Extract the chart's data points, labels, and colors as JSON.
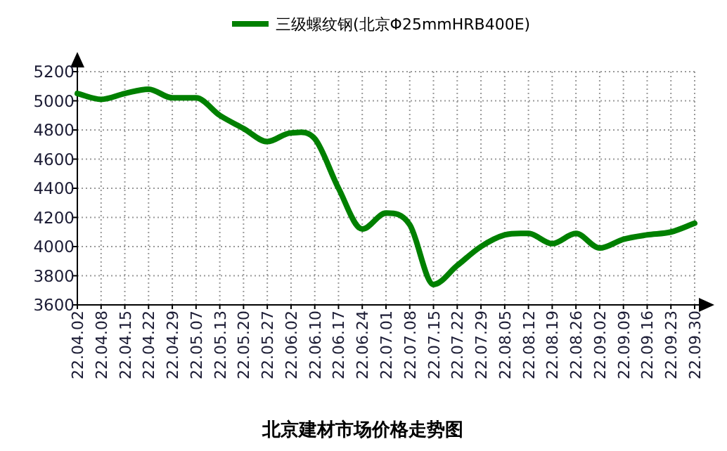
{
  "chart_data": {
    "type": "line",
    "title": "北京建材市场价格走势图",
    "categories": [
      "22.04.02",
      "22.04.08",
      "22.04.15",
      "22.04.22",
      "22.04.29",
      "22.05.07",
      "22.05.13",
      "22.05.20",
      "22.05.27",
      "22.06.02",
      "22.06.10",
      "22.06.17",
      "22.06.24",
      "22.07.01",
      "22.07.08",
      "22.07.15",
      "22.07.22",
      "22.07.29",
      "22.08.05",
      "22.08.12",
      "22.08.19",
      "22.08.26",
      "22.09.02",
      "22.09.09",
      "22.09.16",
      "22.09.23",
      "22.09.30"
    ],
    "series": [
      {
        "name": "三级螺纹钢(北京Φ25mmHRB400E)",
        "color": "#008000",
        "values": [
          5050,
          5010,
          5050,
          5080,
          5020,
          5020,
          4900,
          4810,
          4720,
          4780,
          4740,
          4400,
          4120,
          4230,
          4150,
          3740,
          3870,
          4000,
          4080,
          4090,
          4020,
          4090,
          3990,
          4050,
          4080,
          4100,
          4160
        ]
      }
    ],
    "ylim": [
      3600,
      5200
    ],
    "yticks": [
      3600,
      3800,
      4000,
      4200,
      4400,
      4600,
      4800,
      5000,
      5200
    ],
    "grid": true,
    "legend": "top",
    "marker": "none",
    "line_style": "solid"
  }
}
